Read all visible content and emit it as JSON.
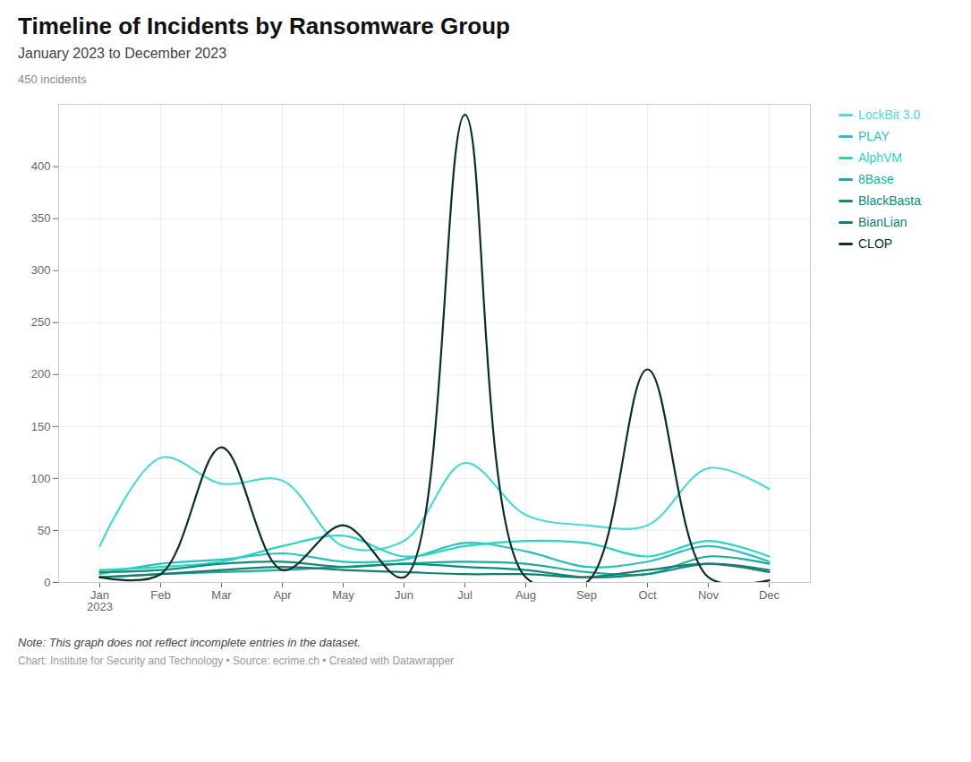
{
  "chart_data": {
    "type": "line",
    "title": "Timeline of Incidents by Ransomware Group",
    "subtitle": "January 2023 to December 2023",
    "ylabel": "450 incidents",
    "note": "Note: This graph does not reflect incomplete entries in the dataset.",
    "source": "Chart: Institute for Security and Technology • Source: ecrime.ch • Created with Datawrapper",
    "categories": [
      "Jan\n2023",
      "Feb",
      "Mar",
      "Apr",
      "May",
      "Jun",
      "Jul",
      "Aug",
      "Sep",
      "Oct",
      "Nov",
      "Dec"
    ],
    "ylim": [
      0,
      460
    ],
    "yticks": [
      0,
      50,
      100,
      150,
      200,
      250,
      300,
      350,
      400
    ],
    "grid": true,
    "legend": "right",
    "series": [
      {
        "name": "LockBit 3.0",
        "color": "#4dd9d5",
        "values": [
          35,
          120,
          95,
          98,
          35,
          40,
          115,
          65,
          55,
          55,
          110,
          90
        ]
      },
      {
        "name": "PLAY",
        "color": "#2bbfbf",
        "values": [
          8,
          18,
          22,
          28,
          20,
          22,
          38,
          30,
          15,
          20,
          35,
          20
        ]
      },
      {
        "name": "AlphVM",
        "color": "#2ad4c0",
        "values": [
          12,
          15,
          20,
          35,
          45,
          25,
          35,
          40,
          38,
          25,
          40,
          25
        ]
      },
      {
        "name": "8Base",
        "color": "#1aad9e",
        "values": [
          5,
          8,
          10,
          12,
          15,
          18,
          20,
          18,
          10,
          8,
          25,
          18
        ]
      },
      {
        "name": "BlackBasta",
        "color": "#0d8c7a",
        "values": [
          10,
          12,
          18,
          20,
          15,
          18,
          15,
          12,
          5,
          8,
          18,
          12
        ]
      },
      {
        "name": "BianLian",
        "color": "#1a7a6e",
        "values": [
          5,
          8,
          12,
          15,
          12,
          10,
          8,
          8,
          5,
          12,
          18,
          10
        ]
      },
      {
        "name": "CLOP",
        "color": "#0a2e28",
        "values": [
          5,
          8,
          130,
          12,
          55,
          5,
          450,
          5,
          0,
          205,
          5,
          2
        ]
      }
    ]
  }
}
